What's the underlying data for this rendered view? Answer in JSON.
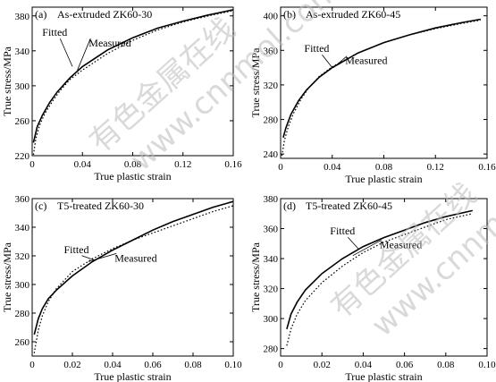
{
  "chart_data": [
    {
      "type": "line",
      "panel_label": "(a)",
      "title": "As-extruded ZK60-30",
      "xlabel": "True plastic strain",
      "ylabel": "True stress/MPa",
      "xlim": [
        0,
        0.16
      ],
      "ylim": [
        220,
        390
      ],
      "xticks": [
        "0",
        "0.04",
        "0.08",
        "0.12",
        "0.16"
      ],
      "yticks": [
        "220",
        "260",
        "300",
        "340",
        "380"
      ],
      "annotations": [
        "Fitted",
        "Measured"
      ],
      "series": [
        {
          "name": "Fitted",
          "style": "solid",
          "x": [
            0.001,
            0.004,
            0.008,
            0.014,
            0.02,
            0.03,
            0.04,
            0.06,
            0.08,
            0.1,
            0.12,
            0.14,
            0.16
          ],
          "y": [
            235,
            253,
            266,
            281,
            293,
            309,
            322,
            341,
            355,
            366,
            374,
            381,
            387
          ]
        },
        {
          "name": "Measured",
          "style": "dotted",
          "x": [
            0.001,
            0.003,
            0.006,
            0.01,
            0.016,
            0.022,
            0.03,
            0.04,
            0.06,
            0.08,
            0.1,
            0.12,
            0.14,
            0.16
          ],
          "y": [
            221,
            240,
            255,
            268,
            282,
            294,
            307,
            318,
            337,
            352,
            364,
            373,
            380,
            386
          ]
        }
      ]
    },
    {
      "type": "line",
      "panel_label": "(b)",
      "title": "As-extruded ZK60-45",
      "xlabel": "True plastic strain",
      "ylabel": "True stress/MPa",
      "xlim": [
        0,
        0.16
      ],
      "ylim": [
        235,
        410
      ],
      "xticks": [
        "0",
        "0.04",
        "0.08",
        "0.12",
        "0.16"
      ],
      "yticks": [
        "240",
        "280",
        "320",
        "360",
        "400"
      ],
      "annotations": [
        "Fitted",
        "Measured"
      ],
      "series": [
        {
          "name": "Fitted",
          "style": "solid",
          "x": [
            0.002,
            0.004,
            0.008,
            0.014,
            0.02,
            0.03,
            0.04,
            0.06,
            0.08,
            0.1,
            0.12,
            0.14,
            0.155
          ],
          "y": [
            259,
            270,
            286,
            302,
            314,
            329,
            340,
            357,
            369,
            378,
            386,
            392,
            396
          ]
        },
        {
          "name": "Measured",
          "style": "dotted",
          "x": [
            0.001,
            0.003,
            0.006,
            0.01,
            0.016,
            0.022,
            0.03,
            0.04,
            0.06,
            0.08,
            0.1,
            0.12,
            0.14,
            0.155
          ],
          "y": [
            238,
            256,
            272,
            287,
            304,
            317,
            330,
            341,
            357,
            369,
            378,
            385,
            391,
            395
          ]
        }
      ]
    },
    {
      "type": "line",
      "panel_label": "(c)",
      "title": "T5-treated ZK60-30",
      "xlabel": "True plastic strain",
      "ylabel": "True stress/MPa",
      "xlim": [
        0,
        0.1
      ],
      "ylim": [
        250,
        360
      ],
      "xticks": [
        "0",
        "0.02",
        "0.04",
        "0.06",
        "0.08",
        "0.10"
      ],
      "yticks": [
        "260",
        "280",
        "300",
        "320",
        "340",
        "360"
      ],
      "annotations": [
        "Fitted",
        "Measured"
      ],
      "series": [
        {
          "name": "Fitted",
          "style": "solid",
          "x": [
            0.001,
            0.003,
            0.005,
            0.008,
            0.012,
            0.02,
            0.03,
            0.04,
            0.05,
            0.06,
            0.07,
            0.08,
            0.09,
            0.1
          ],
          "y": [
            265,
            276,
            283,
            290,
            296,
            306,
            316,
            324,
            331,
            338,
            344,
            349,
            354,
            358
          ]
        },
        {
          "name": "Measured",
          "style": "dotted",
          "x": [
            0.001,
            0.003,
            0.005,
            0.008,
            0.012,
            0.02,
            0.03,
            0.04,
            0.05,
            0.06,
            0.07,
            0.08,
            0.09,
            0.1
          ],
          "y": [
            252,
            268,
            278,
            288,
            297,
            309,
            318,
            325,
            331,
            336,
            341,
            346,
            351,
            355
          ]
        }
      ]
    },
    {
      "type": "line",
      "panel_label": "(d)",
      "title": "T5-treated ZK60-45",
      "xlabel": "True plastic strain",
      "ylabel": "True stress/MPa",
      "xlim": [
        0,
        0.1
      ],
      "ylim": [
        275,
        380
      ],
      "xticks": [
        "0",
        "0.02",
        "0.04",
        "0.06",
        "0.08",
        "0.10"
      ],
      "yticks": [
        "280",
        "300",
        "320",
        "340",
        "360",
        "380"
      ],
      "annotations": [
        "Fitted",
        "Measured"
      ],
      "series": [
        {
          "name": "Fitted",
          "style": "solid",
          "x": [
            0.003,
            0.005,
            0.008,
            0.012,
            0.02,
            0.03,
            0.04,
            0.05,
            0.06,
            0.07,
            0.08,
            0.093
          ],
          "y": [
            293,
            303,
            311,
            319,
            330,
            340,
            348,
            354,
            359,
            364,
            368,
            372
          ]
        },
        {
          "name": "Measured",
          "style": "dotted",
          "x": [
            0.003,
            0.005,
            0.008,
            0.012,
            0.02,
            0.03,
            0.04,
            0.05,
            0.06,
            0.07,
            0.08,
            0.093
          ],
          "y": [
            282,
            293,
            303,
            312,
            324,
            335,
            344,
            351,
            356,
            361,
            366,
            370
          ]
        }
      ]
    }
  ],
  "watermark": {
    "text_cn": "有色金属在线",
    "text_url": "www.cnnmol.com"
  }
}
